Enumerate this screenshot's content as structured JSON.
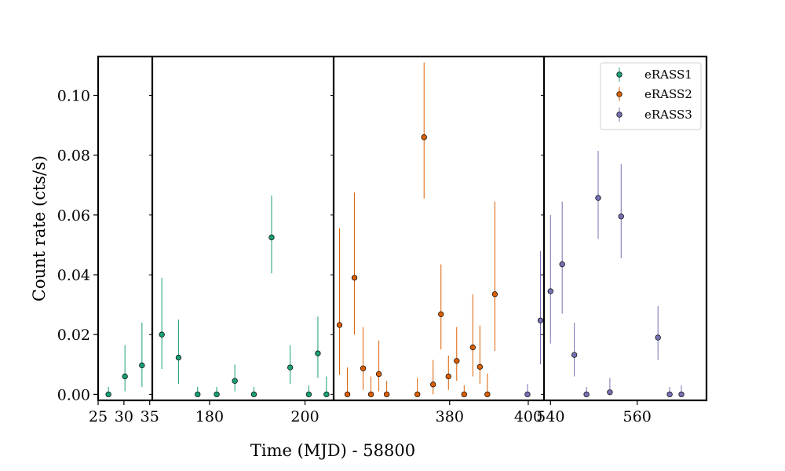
{
  "chart_data": {
    "type": "scatter",
    "title": "",
    "xlabel": "Time (MJD) - 58800",
    "ylabel": "Count rate (cts/s)",
    "ylim": [
      -0.002,
      0.113
    ],
    "y_ticks": [
      0.0,
      0.02,
      0.04,
      0.06,
      0.08,
      0.1
    ],
    "y_tick_labels": [
      "0.00",
      "0.02",
      "0.04",
      "0.06",
      "0.08",
      "0.10"
    ],
    "legend_position": "top-right",
    "grid": false,
    "panels": [
      {
        "xlim": [
          25,
          35.5
        ],
        "x_ticks": [
          25,
          30,
          35
        ],
        "x_tick_labels": [
          "25",
          "30",
          "35"
        ]
      },
      {
        "xlim": [
          168,
          206
        ],
        "x_ticks": [
          180,
          200
        ],
        "x_tick_labels": [
          "180",
          "200"
        ]
      },
      {
        "xlim": [
          350.5,
          404
        ],
        "x_ticks": [
          380,
          400
        ],
        "x_tick_labels": [
          "380",
          "400"
        ]
      },
      {
        "xlim": [
          538.5,
          576
        ],
        "x_ticks": [
          540,
          560
        ],
        "x_tick_labels": [
          "540",
          "560"
        ]
      }
    ],
    "series": [
      {
        "name": "eRASS1",
        "color": "#1b9e77",
        "points": [
          {
            "p": 0,
            "x": 27.0,
            "y": 0.0,
            "lo": 0.0,
            "hi": 0.0025
          },
          {
            "p": 0,
            "x": 30.2,
            "y": 0.006,
            "lo": 0.001,
            "hi": 0.0165
          },
          {
            "p": 0,
            "x": 33.5,
            "y": 0.0097,
            "lo": 0.0025,
            "hi": 0.024
          },
          {
            "p": 1,
            "x": 170.0,
            "y": 0.02,
            "lo": 0.0085,
            "hi": 0.039
          },
          {
            "p": 1,
            "x": 173.5,
            "y": 0.0123,
            "lo": 0.0035,
            "hi": 0.025
          },
          {
            "p": 1,
            "x": 177.5,
            "y": 0.0,
            "lo": 0.0,
            "hi": 0.0025
          },
          {
            "p": 1,
            "x": 181.5,
            "y": 0.0,
            "lo": 0.0,
            "hi": 0.0025
          },
          {
            "p": 1,
            "x": 185.3,
            "y": 0.0045,
            "lo": 0.001,
            "hi": 0.01
          },
          {
            "p": 1,
            "x": 189.3,
            "y": 0.0,
            "lo": 0.0,
            "hi": 0.0025
          },
          {
            "p": 1,
            "x": 193.0,
            "y": 0.0525,
            "lo": 0.0405,
            "hi": 0.0665
          },
          {
            "p": 1,
            "x": 196.9,
            "y": 0.009,
            "lo": 0.0035,
            "hi": 0.0165
          },
          {
            "p": 1,
            "x": 200.8,
            "y": 0.0,
            "lo": 0.0,
            "hi": 0.003
          },
          {
            "p": 1,
            "x": 202.7,
            "y": 0.0137,
            "lo": 0.0055,
            "hi": 0.026
          },
          {
            "p": 1,
            "x": 204.5,
            "y": 0.0,
            "lo": 0.0,
            "hi": 0.006
          }
        ]
      },
      {
        "name": "eRASS2",
        "color": "#d95f02",
        "points": [
          {
            "p": 2,
            "x": 352.0,
            "y": 0.0232,
            "lo": 0.0065,
            "hi": 0.0555
          },
          {
            "p": 2,
            "x": 354.0,
            "y": 0.0,
            "lo": 0.0,
            "hi": 0.009
          },
          {
            "p": 2,
            "x": 355.8,
            "y": 0.039,
            "lo": 0.02,
            "hi": 0.0675
          },
          {
            "p": 2,
            "x": 358.0,
            "y": 0.0087,
            "lo": 0.0015,
            "hi": 0.0225
          },
          {
            "p": 2,
            "x": 360.0,
            "y": 0.0,
            "lo": 0.0,
            "hi": 0.006
          },
          {
            "p": 2,
            "x": 362.0,
            "y": 0.0068,
            "lo": 0.001,
            "hi": 0.018
          },
          {
            "p": 2,
            "x": 364.0,
            "y": 0.0,
            "lo": 0.0,
            "hi": 0.0045
          },
          {
            "p": 2,
            "x": 371.8,
            "y": 0.0,
            "lo": 0.0,
            "hi": 0.0055
          },
          {
            "p": 2,
            "x": 373.5,
            "y": 0.086,
            "lo": 0.0655,
            "hi": 0.111
          },
          {
            "p": 2,
            "x": 375.8,
            "y": 0.0033,
            "lo": 0.0,
            "hi": 0.0115
          },
          {
            "p": 2,
            "x": 377.8,
            "y": 0.0268,
            "lo": 0.015,
            "hi": 0.0435
          },
          {
            "p": 2,
            "x": 379.7,
            "y": 0.006,
            "lo": 0.0015,
            "hi": 0.013
          },
          {
            "p": 2,
            "x": 381.8,
            "y": 0.0112,
            "lo": 0.0045,
            "hi": 0.0225
          },
          {
            "p": 2,
            "x": 383.7,
            "y": 0.0,
            "lo": 0.0,
            "hi": 0.003
          },
          {
            "p": 2,
            "x": 385.9,
            "y": 0.0157,
            "lo": 0.006,
            "hi": 0.0335
          },
          {
            "p": 2,
            "x": 387.7,
            "y": 0.0092,
            "lo": 0.0035,
            "hi": 0.023
          },
          {
            "p": 2,
            "x": 389.6,
            "y": 0.0,
            "lo": 0.0,
            "hi": 0.007
          },
          {
            "p": 2,
            "x": 391.5,
            "y": 0.0335,
            "lo": 0.0145,
            "hi": 0.0645
          }
        ]
      },
      {
        "name": "eRASS3",
        "color": "#7570b3",
        "points": [
          {
            "p": 2,
            "x": 399.8,
            "y": 0.0,
            "lo": 0.0,
            "hi": 0.0035
          },
          {
            "p": 2,
            "x": 403.1,
            "y": 0.0247,
            "lo": 0.01,
            "hi": 0.048
          },
          {
            "p": 3,
            "x": 540.0,
            "y": 0.0345,
            "lo": 0.017,
            "hi": 0.06
          },
          {
            "p": 3,
            "x": 542.7,
            "y": 0.0435,
            "lo": 0.027,
            "hi": 0.0645
          },
          {
            "p": 3,
            "x": 545.5,
            "y": 0.0132,
            "lo": 0.006,
            "hi": 0.024
          },
          {
            "p": 3,
            "x": 548.3,
            "y": 0.0,
            "lo": 0.0,
            "hi": 0.0025
          },
          {
            "p": 3,
            "x": 551.0,
            "y": 0.0657,
            "lo": 0.052,
            "hi": 0.0815
          },
          {
            "p": 3,
            "x": 553.7,
            "y": 0.0007,
            "lo": 0.0,
            "hi": 0.0055
          },
          {
            "p": 3,
            "x": 556.3,
            "y": 0.0595,
            "lo": 0.0455,
            "hi": 0.077
          },
          {
            "p": 3,
            "x": 564.8,
            "y": 0.019,
            "lo": 0.0115,
            "hi": 0.0295
          },
          {
            "p": 3,
            "x": 567.5,
            "y": 0.0,
            "lo": 0.0,
            "hi": 0.0025
          },
          {
            "p": 3,
            "x": 570.2,
            "y": 0.0,
            "lo": 0.0,
            "hi": 0.003
          }
        ]
      }
    ]
  }
}
